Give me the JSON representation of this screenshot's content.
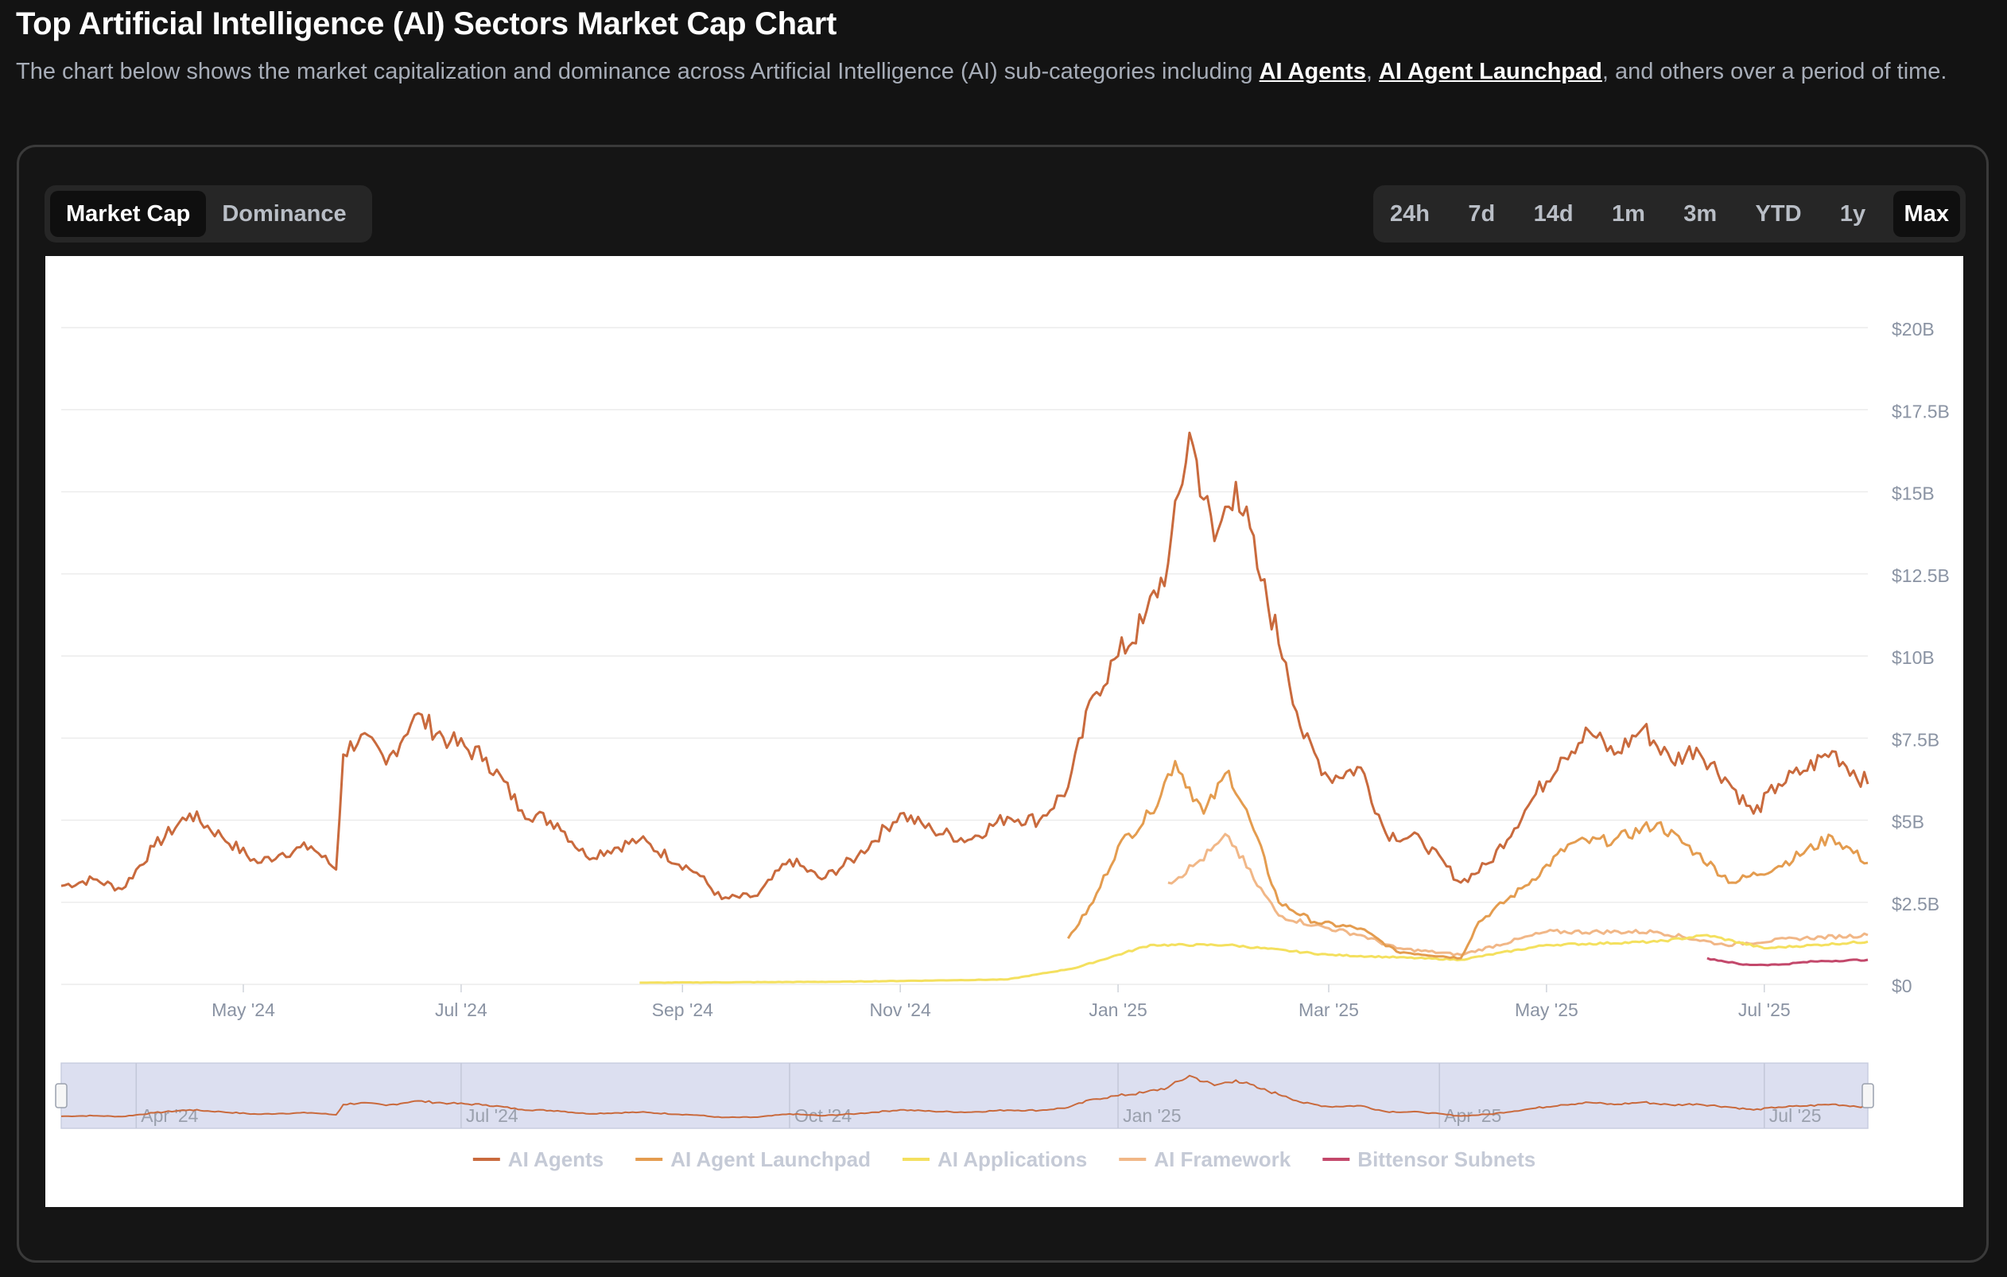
{
  "page": {
    "title": "Top Artificial Intelligence (AI) Sectors Market Cap Chart",
    "description_pre": "The chart below shows the market capitalization and dominance across Artificial Intelligence (AI) sub-categories including ",
    "link_1": "AI Agents",
    "sep": ", ",
    "link_2": "AI Agent Launchpad",
    "description_post": ", and others over a period of time."
  },
  "metric_toggle": {
    "options": [
      "Market Cap",
      "Dominance"
    ],
    "selected": "Market Cap"
  },
  "range_toggle": {
    "options": [
      "24h",
      "7d",
      "14d",
      "1m",
      "3m",
      "YTD",
      "1y",
      "Max"
    ],
    "selected": "Max"
  },
  "chart_data": {
    "type": "line",
    "title": "",
    "xlabel": "",
    "ylabel": "",
    "x_range": [
      "2024-03-11",
      "2025-07-30"
    ],
    "ylim": [
      0,
      20
    ],
    "y_unit": "billion USD",
    "y_ticks": [
      "$0",
      "$2.5B",
      "$5B",
      "$7.5B",
      "$10B",
      "$12.5B",
      "$15B",
      "$17.5B",
      "$20B"
    ],
    "y_tick_values": [
      0,
      2.5,
      5,
      7.5,
      10,
      12.5,
      15,
      17.5,
      20
    ],
    "x_ticks": [
      "May '24",
      "Jul '24",
      "Sep '24",
      "Nov '24",
      "Jan '25",
      "Mar '25",
      "May '25",
      "Jul '25"
    ],
    "x_tick_dates": [
      "2024-05-01",
      "2024-07-01",
      "2024-09-01",
      "2024-11-01",
      "2025-01-01",
      "2025-03-01",
      "2025-05-01",
      "2025-07-01"
    ],
    "grid": true,
    "legend_position": "bottom-center",
    "navigator": {
      "labels": [
        "Apr '24",
        "Jul '24",
        "Oct '24",
        "Jan '25",
        "Apr '25",
        "Jul '25"
      ],
      "label_dates": [
        "2024-04-01",
        "2024-07-01",
        "2024-10-01",
        "2025-01-01",
        "2025-04-01",
        "2025-07-01"
      ]
    },
    "series": [
      {
        "name": "AI Agents",
        "color": "#c96a3d",
        "points": [
          [
            "2024-03-11",
            3.0
          ],
          [
            "2024-03-20",
            3.2
          ],
          [
            "2024-03-28",
            2.9
          ],
          [
            "2024-04-06",
            4.2
          ],
          [
            "2024-04-16",
            5.2
          ],
          [
            "2024-04-25",
            4.5
          ],
          [
            "2024-05-05",
            3.7
          ],
          [
            "2024-05-12",
            4.0
          ],
          [
            "2024-05-20",
            4.2
          ],
          [
            "2024-05-27",
            3.5
          ],
          [
            "2024-05-29",
            7.0
          ],
          [
            "2024-06-03",
            7.6
          ],
          [
            "2024-06-10",
            6.7
          ],
          [
            "2024-06-18",
            8.2
          ],
          [
            "2024-06-28",
            7.4
          ],
          [
            "2024-07-08",
            6.9
          ],
          [
            "2024-07-18",
            5.3
          ],
          [
            "2024-07-28",
            4.9
          ],
          [
            "2024-08-05",
            3.9
          ],
          [
            "2024-08-20",
            4.4
          ],
          [
            "2024-09-05",
            3.4
          ],
          [
            "2024-09-12",
            2.6
          ],
          [
            "2024-09-22",
            2.7
          ],
          [
            "2024-10-01",
            3.8
          ],
          [
            "2024-10-10",
            3.2
          ],
          [
            "2024-10-20",
            3.9
          ],
          [
            "2024-11-01",
            5.2
          ],
          [
            "2024-11-10",
            4.7
          ],
          [
            "2024-11-20",
            4.4
          ],
          [
            "2024-12-01",
            5.1
          ],
          [
            "2024-12-10",
            5.0
          ],
          [
            "2024-12-18",
            6.0
          ],
          [
            "2024-12-25",
            8.8
          ],
          [
            "2025-01-01",
            10.0
          ],
          [
            "2025-01-08",
            11.0
          ],
          [
            "2025-01-15",
            12.8
          ],
          [
            "2025-01-21",
            16.8
          ],
          [
            "2025-01-28",
            13.5
          ],
          [
            "2025-02-03",
            15.3
          ],
          [
            "2025-02-10",
            12.3
          ],
          [
            "2025-02-17",
            9.8
          ],
          [
            "2025-02-22",
            7.5
          ],
          [
            "2025-03-01",
            6.3
          ],
          [
            "2025-03-10",
            6.6
          ],
          [
            "2025-03-17",
            4.6
          ],
          [
            "2025-03-27",
            4.4
          ],
          [
            "2025-04-07",
            3.1
          ],
          [
            "2025-04-15",
            3.7
          ],
          [
            "2025-04-25",
            5.3
          ],
          [
            "2025-05-05",
            6.9
          ],
          [
            "2025-05-13",
            7.7
          ],
          [
            "2025-05-20",
            7.0
          ],
          [
            "2025-05-28",
            7.8
          ],
          [
            "2025-06-05",
            6.8
          ],
          [
            "2025-06-12",
            7.2
          ],
          [
            "2025-06-20",
            6.3
          ],
          [
            "2025-06-28",
            5.2
          ],
          [
            "2025-07-05",
            6.1
          ],
          [
            "2025-07-12",
            6.5
          ],
          [
            "2025-07-20",
            7.1
          ],
          [
            "2025-07-30",
            6.1
          ]
        ]
      },
      {
        "name": "AI Agent Launchpad",
        "color": "#e49c4f",
        "points": [
          [
            "2024-12-18",
            1.4
          ],
          [
            "2024-12-25",
            2.5
          ],
          [
            "2025-01-01",
            4.2
          ],
          [
            "2025-01-10",
            5.2
          ],
          [
            "2025-01-17",
            6.8
          ],
          [
            "2025-01-25",
            5.2
          ],
          [
            "2025-02-01",
            6.5
          ],
          [
            "2025-02-08",
            4.7
          ],
          [
            "2025-02-15",
            2.5
          ],
          [
            "2025-02-25",
            1.9
          ],
          [
            "2025-03-10",
            1.7
          ],
          [
            "2025-03-20",
            1.0
          ],
          [
            "2025-04-07",
            0.8
          ],
          [
            "2025-04-12",
            1.9
          ],
          [
            "2025-04-25",
            3.0
          ],
          [
            "2025-05-08",
            4.3
          ],
          [
            "2025-05-20",
            4.4
          ],
          [
            "2025-06-01",
            4.9
          ],
          [
            "2025-06-12",
            4.0
          ],
          [
            "2025-06-22",
            3.1
          ],
          [
            "2025-07-05",
            3.6
          ],
          [
            "2025-07-20",
            4.5
          ],
          [
            "2025-07-30",
            3.7
          ]
        ]
      },
      {
        "name": "AI Applications",
        "color": "#f4e05f",
        "points": [
          [
            "2024-08-20",
            0.05
          ],
          [
            "2024-10-15",
            0.08
          ],
          [
            "2024-12-01",
            0.15
          ],
          [
            "2024-12-20",
            0.5
          ],
          [
            "2025-01-10",
            1.2
          ],
          [
            "2025-02-01",
            1.2
          ],
          [
            "2025-03-01",
            0.9
          ],
          [
            "2025-04-07",
            0.75
          ],
          [
            "2025-05-01",
            1.2
          ],
          [
            "2025-06-01",
            1.3
          ],
          [
            "2025-06-15",
            1.5
          ],
          [
            "2025-07-01",
            1.1
          ],
          [
            "2025-07-30",
            1.3
          ]
        ]
      },
      {
        "name": "AI Framework",
        "color": "#f1b787",
        "points": [
          [
            "2025-01-15",
            3.1
          ],
          [
            "2025-01-22",
            3.6
          ],
          [
            "2025-02-01",
            4.5
          ],
          [
            "2025-02-08",
            3.2
          ],
          [
            "2025-02-15",
            2.1
          ],
          [
            "2025-02-25",
            1.8
          ],
          [
            "2025-03-10",
            1.5
          ],
          [
            "2025-03-20",
            1.1
          ],
          [
            "2025-04-07",
            0.9
          ],
          [
            "2025-05-01",
            1.6
          ],
          [
            "2025-06-01",
            1.6
          ],
          [
            "2025-06-20",
            1.2
          ],
          [
            "2025-07-10",
            1.4
          ],
          [
            "2025-07-30",
            1.5
          ]
        ]
      },
      {
        "name": "Bittensor Subnets",
        "color": "#c3486b",
        "points": [
          [
            "2025-06-15",
            0.8
          ],
          [
            "2025-06-25",
            0.6
          ],
          [
            "2025-07-05",
            0.6
          ],
          [
            "2025-07-15",
            0.7
          ],
          [
            "2025-07-30",
            0.75
          ]
        ]
      }
    ]
  }
}
